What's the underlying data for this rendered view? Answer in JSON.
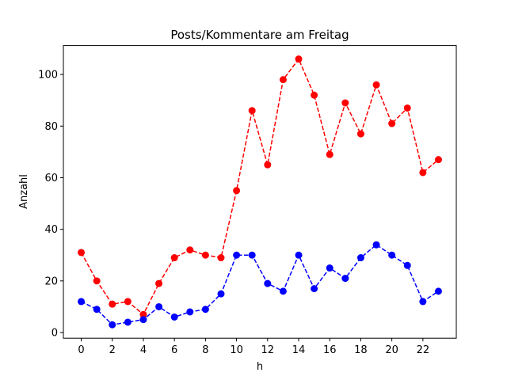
{
  "chart_data": {
    "type": "line",
    "title": "Posts/Kommentare am Freitag",
    "xlabel": "h",
    "ylabel": "Anzahl",
    "x": [
      0,
      1,
      2,
      3,
      4,
      5,
      6,
      7,
      8,
      9,
      10,
      11,
      12,
      13,
      14,
      15,
      16,
      17,
      18,
      19,
      20,
      21,
      22,
      23
    ],
    "xticks": [
      0,
      2,
      4,
      6,
      8,
      10,
      12,
      14,
      16,
      18,
      20,
      22
    ],
    "yticks": [
      0,
      20,
      40,
      60,
      80,
      100
    ],
    "xlim": [
      -1.15,
      24.15
    ],
    "ylim": [
      -2.2,
      111.2
    ],
    "grid": false,
    "series": [
      {
        "color": "#ff0000",
        "line_style": "dashed",
        "marker": "circle",
        "values": [
          31,
          20,
          11,
          12,
          7,
          19,
          29,
          32,
          30,
          29,
          55,
          86,
          65,
          98,
          106,
          92,
          69,
          89,
          77,
          96,
          81,
          87,
          62,
          67
        ]
      },
      {
        "color": "#0000ff",
        "line_style": "dashed",
        "marker": "circle",
        "values": [
          12,
          9,
          3,
          4,
          5,
          10,
          6,
          8,
          9,
          15,
          30,
          30,
          19,
          16,
          30,
          17,
          25,
          21,
          29,
          34,
          30,
          26,
          12,
          16
        ]
      }
    ]
  }
}
